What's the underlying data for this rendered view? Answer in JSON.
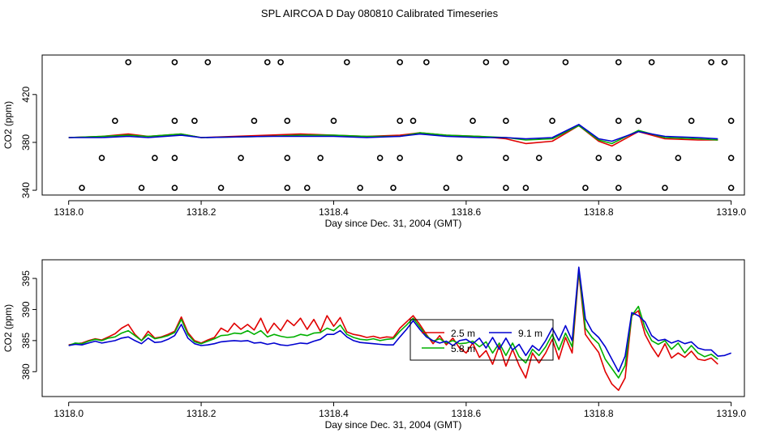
{
  "title": "SPL AIRCOA D  Day 080810  Calibrated Timeseries",
  "colors": {
    "red": "#e00000",
    "green": "#00b000",
    "blue": "#0000d0",
    "axis": "#000000"
  },
  "chart_data": [
    {
      "type": "scatter+line",
      "xlabel": "Day since Dec. 31, 2004 (GMT)",
      "ylabel": "CO2 (ppm)",
      "xlim": [
        1317.96,
        1319.02
      ],
      "ylim": [
        336,
        453
      ],
      "xticks": [
        1318.0,
        1318.2,
        1318.4,
        1318.6,
        1318.8,
        1319.0
      ],
      "xtick_labels": [
        "1318.0",
        "1318.2",
        "1318.4",
        "1318.6",
        "1318.8",
        "1319.0"
      ],
      "yticks": [
        340,
        380,
        420
      ],
      "ytick_labels": [
        "340",
        "380",
        "420"
      ],
      "calibration_points": {
        "marker": "open-circle",
        "levels": [
          {
            "y": 447,
            "x": [
              1318.09,
              1318.16,
              1318.21,
              1318.3,
              1318.32,
              1318.42,
              1318.5,
              1318.54,
              1318.63,
              1318.66,
              1318.75,
              1318.83,
              1318.88,
              1318.97,
              1318.99
            ]
          },
          {
            "y": 398,
            "x": [
              1318.07,
              1318.16,
              1318.19,
              1318.28,
              1318.33,
              1318.4,
              1318.5,
              1318.52,
              1318.61,
              1318.66,
              1318.73,
              1318.83,
              1318.86,
              1318.94,
              1319.0
            ]
          },
          {
            "y": 367,
            "x": [
              1318.05,
              1318.13,
              1318.16,
              1318.26,
              1318.33,
              1318.38,
              1318.47,
              1318.5,
              1318.59,
              1318.66,
              1318.71,
              1318.8,
              1318.83,
              1318.92,
              1319.0
            ]
          },
          {
            "y": 342,
            "x": [
              1318.02,
              1318.11,
              1318.16,
              1318.23,
              1318.33,
              1318.36,
              1318.44,
              1318.49,
              1318.57,
              1318.66,
              1318.69,
              1318.78,
              1318.83,
              1318.9,
              1319.0
            ]
          }
        ]
      },
      "series": [
        {
          "name": "2.5 m",
          "color": "#e00000",
          "x": [
            1318.0,
            1318.05,
            1318.09,
            1318.12,
            1318.17,
            1318.2,
            1318.3,
            1318.35,
            1318.4,
            1318.45,
            1318.5,
            1318.53,
            1318.57,
            1318.62,
            1318.66,
            1318.69,
            1318.73,
            1318.77,
            1318.8,
            1318.82,
            1318.86,
            1318.9,
            1318.95,
            1318.98
          ],
          "values": [
            384,
            385,
            387,
            385,
            387,
            384,
            386,
            387,
            386,
            385,
            386,
            388,
            386,
            385,
            383,
            379,
            381,
            394,
            381,
            377,
            389,
            383,
            382,
            382
          ]
        },
        {
          "name": "5.8 m",
          "color": "#00b000",
          "x": [
            1318.0,
            1318.05,
            1318.09,
            1318.12,
            1318.17,
            1318.2,
            1318.3,
            1318.35,
            1318.4,
            1318.45,
            1318.5,
            1318.53,
            1318.57,
            1318.62,
            1318.66,
            1318.69,
            1318.73,
            1318.77,
            1318.8,
            1318.82,
            1318.86,
            1318.9,
            1318.95,
            1318.98
          ],
          "values": [
            384,
            385,
            386,
            385,
            387,
            384,
            385,
            386,
            386,
            385,
            385,
            388,
            386,
            385,
            384,
            382,
            383,
            394,
            382,
            379,
            390,
            384,
            383,
            382
          ]
        },
        {
          "name": "9.1 m",
          "color": "#0000d0",
          "x": [
            1318.0,
            1318.05,
            1318.09,
            1318.12,
            1318.17,
            1318.2,
            1318.3,
            1318.35,
            1318.4,
            1318.45,
            1318.5,
            1318.53,
            1318.57,
            1318.62,
            1318.66,
            1318.69,
            1318.73,
            1318.77,
            1318.8,
            1318.82,
            1318.86,
            1318.9,
            1318.95,
            1318.98
          ],
          "values": [
            384,
            384,
            385,
            384,
            386,
            384,
            385,
            385,
            385,
            384,
            385,
            387,
            385,
            384,
            384,
            383,
            384,
            395,
            383,
            381,
            389,
            385,
            384,
            383
          ]
        }
      ]
    },
    {
      "type": "line",
      "xlabel": "Day since Dec. 31, 2004 (GMT)",
      "ylabel": "CO2 (ppm)",
      "xlim": [
        1317.96,
        1319.02
      ],
      "ylim": [
        376,
        398
      ],
      "xticks": [
        1318.0,
        1318.2,
        1318.4,
        1318.6,
        1318.8,
        1319.0
      ],
      "xtick_labels": [
        "1318.0",
        "1318.2",
        "1318.4",
        "1318.6",
        "1318.8",
        "1319.0"
      ],
      "yticks": [
        380,
        385,
        390,
        395
      ],
      "ytick_labels": [
        "380",
        "385",
        "390",
        "395"
      ],
      "legend": {
        "position": "center-right",
        "entries": [
          {
            "label": "2.5 m",
            "color": "#e00000"
          },
          {
            "label": "9.1 m",
            "color": "#0000d0"
          },
          {
            "label": "5.8 m",
            "color": "#00b000"
          }
        ]
      },
      "series": [
        {
          "name": "2.5 m",
          "color": "#e00000",
          "x": [
            1318.0,
            1318.01,
            1318.02,
            1318.03,
            1318.04,
            1318.05,
            1318.06,
            1318.07,
            1318.08,
            1318.09,
            1318.1,
            1318.11,
            1318.12,
            1318.13,
            1318.14,
            1318.15,
            1318.16,
            1318.17,
            1318.18,
            1318.19,
            1318.2,
            1318.21,
            1318.22,
            1318.23,
            1318.24,
            1318.25,
            1318.26,
            1318.27,
            1318.28,
            1318.29,
            1318.3,
            1318.31,
            1318.32,
            1318.33,
            1318.34,
            1318.35,
            1318.36,
            1318.37,
            1318.38,
            1318.39,
            1318.4,
            1318.41,
            1318.42,
            1318.43,
            1318.44,
            1318.45,
            1318.46,
            1318.47,
            1318.48,
            1318.49,
            1318.5,
            1318.51,
            1318.52,
            1318.53,
            1318.54,
            1318.55,
            1318.56,
            1318.57,
            1318.58,
            1318.59,
            1318.6,
            1318.61,
            1318.62,
            1318.63,
            1318.64,
            1318.65,
            1318.66,
            1318.67,
            1318.68,
            1318.69,
            1318.7,
            1318.71,
            1318.72,
            1318.73,
            1318.74,
            1318.75,
            1318.76,
            1318.77,
            1318.78,
            1318.79,
            1318.8,
            1318.81,
            1318.82,
            1318.83,
            1318.84,
            1318.85,
            1318.86,
            1318.87,
            1318.88,
            1318.89,
            1318.9,
            1318.91,
            1318.92,
            1318.93,
            1318.94,
            1318.95,
            1318.96,
            1318.97,
            1318.98
          ],
          "values": [
            384.3,
            384.5,
            384.6,
            385.0,
            385.3,
            385.1,
            385.6,
            386.1,
            387.0,
            387.6,
            386.0,
            385.0,
            386.5,
            385.4,
            385.6,
            386.0,
            386.5,
            388.8,
            386.3,
            385.0,
            384.6,
            385.1,
            385.5,
            387.0,
            386.4,
            387.8,
            386.8,
            387.6,
            386.7,
            388.6,
            386.2,
            387.8,
            386.6,
            388.3,
            387.4,
            388.6,
            386.8,
            388.4,
            386.5,
            389.0,
            387.3,
            388.7,
            386.4,
            386.0,
            385.8,
            385.5,
            385.7,
            385.4,
            385.6,
            385.5,
            387.0,
            388.0,
            389.0,
            387.6,
            386.0,
            384.5,
            385.8,
            384.3,
            385.4,
            383.8,
            383.0,
            384.6,
            382.3,
            383.4,
            381.2,
            384.2,
            380.9,
            383.6,
            381.0,
            379.0,
            383.0,
            381.4,
            383.0,
            385.2,
            382.0,
            385.5,
            383.0,
            396.0,
            386.0,
            384.5,
            383.1,
            380.0,
            378.0,
            377.0,
            379.0,
            389.0,
            389.8,
            386.0,
            384.0,
            382.4,
            384.5,
            382.2,
            383.0,
            382.3,
            383.3,
            382.0,
            381.8,
            382.2,
            381.2
          ]
        },
        {
          "name": "5.8 m",
          "color": "#00b000",
          "x": [
            1318.0,
            1318.01,
            1318.02,
            1318.03,
            1318.04,
            1318.05,
            1318.06,
            1318.07,
            1318.08,
            1318.09,
            1318.1,
            1318.11,
            1318.12,
            1318.13,
            1318.14,
            1318.15,
            1318.16,
            1318.17,
            1318.18,
            1318.19,
            1318.2,
            1318.21,
            1318.22,
            1318.23,
            1318.24,
            1318.25,
            1318.26,
            1318.27,
            1318.28,
            1318.29,
            1318.3,
            1318.31,
            1318.32,
            1318.33,
            1318.34,
            1318.35,
            1318.36,
            1318.37,
            1318.38,
            1318.39,
            1318.4,
            1318.41,
            1318.42,
            1318.43,
            1318.44,
            1318.45,
            1318.46,
            1318.47,
            1318.48,
            1318.49,
            1318.5,
            1318.51,
            1318.52,
            1318.53,
            1318.54,
            1318.55,
            1318.56,
            1318.57,
            1318.58,
            1318.59,
            1318.6,
            1318.61,
            1318.62,
            1318.63,
            1318.64,
            1318.65,
            1318.66,
            1318.67,
            1318.68,
            1318.69,
            1318.7,
            1318.71,
            1318.72,
            1318.73,
            1318.74,
            1318.75,
            1318.76,
            1318.77,
            1318.78,
            1318.79,
            1318.8,
            1318.81,
            1318.82,
            1318.83,
            1318.84,
            1318.85,
            1318.86,
            1318.87,
            1318.88,
            1318.89,
            1318.9,
            1318.91,
            1318.92,
            1318.93,
            1318.94,
            1318.95,
            1318.96,
            1318.97,
            1318.98
          ],
          "values": [
            384.2,
            384.6,
            384.5,
            384.9,
            385.2,
            385.0,
            385.4,
            385.6,
            386.2,
            386.6,
            385.8,
            385.0,
            386.0,
            385.3,
            385.5,
            385.8,
            386.3,
            388.4,
            386.0,
            384.8,
            384.5,
            384.9,
            385.3,
            385.8,
            385.9,
            386.2,
            386.1,
            386.6,
            386.0,
            386.6,
            385.6,
            386.0,
            385.7,
            385.5,
            385.6,
            386.0,
            385.8,
            386.2,
            386.3,
            387.0,
            386.6,
            387.5,
            386.0,
            385.5,
            385.2,
            385.1,
            385.3,
            385.0,
            385.2,
            385.3,
            386.5,
            387.5,
            388.6,
            387.2,
            385.8,
            384.9,
            385.3,
            384.6,
            385.0,
            384.5,
            384.6,
            384.9,
            384.0,
            384.8,
            383.0,
            384.6,
            382.6,
            384.6,
            382.4,
            381.4,
            383.6,
            382.6,
            384.0,
            386.0,
            383.5,
            386.2,
            384.0,
            396.4,
            387.0,
            385.5,
            384.5,
            382.0,
            380.5,
            379.0,
            381.0,
            389.0,
            390.5,
            387.0,
            385.0,
            384.4,
            385.0,
            383.6,
            384.6,
            383.0,
            384.2,
            383.0,
            382.4,
            382.8,
            382.0
          ]
        },
        {
          "name": "9.1 m",
          "color": "#0000d0",
          "x": [
            1318.0,
            1318.01,
            1318.02,
            1318.03,
            1318.04,
            1318.05,
            1318.06,
            1318.07,
            1318.08,
            1318.09,
            1318.1,
            1318.11,
            1318.12,
            1318.13,
            1318.14,
            1318.15,
            1318.16,
            1318.17,
            1318.18,
            1318.19,
            1318.2,
            1318.21,
            1318.22,
            1318.23,
            1318.24,
            1318.25,
            1318.26,
            1318.27,
            1318.28,
            1318.29,
            1318.3,
            1318.31,
            1318.32,
            1318.33,
            1318.34,
            1318.35,
            1318.36,
            1318.37,
            1318.38,
            1318.39,
            1318.4,
            1318.41,
            1318.42,
            1318.43,
            1318.44,
            1318.45,
            1318.46,
            1318.47,
            1318.48,
            1318.49,
            1318.5,
            1318.51,
            1318.52,
            1318.53,
            1318.54,
            1318.55,
            1318.56,
            1318.57,
            1318.58,
            1318.59,
            1318.6,
            1318.61,
            1318.62,
            1318.63,
            1318.64,
            1318.65,
            1318.66,
            1318.67,
            1318.68,
            1318.69,
            1318.7,
            1318.71,
            1318.72,
            1318.73,
            1318.74,
            1318.75,
            1318.76,
            1318.77,
            1318.78,
            1318.79,
            1318.8,
            1318.81,
            1318.82,
            1318.83,
            1318.84,
            1318.85,
            1318.86,
            1318.87,
            1318.88,
            1318.89,
            1318.9,
            1318.91,
            1318.92,
            1318.93,
            1318.94,
            1318.95,
            1318.96,
            1318.97,
            1318.98,
            1318.99,
            1319.0
          ],
          "values": [
            384.2,
            384.4,
            384.3,
            384.6,
            384.9,
            384.6,
            384.8,
            385.0,
            385.4,
            385.6,
            385.0,
            384.5,
            385.4,
            384.7,
            384.8,
            385.2,
            385.8,
            387.6,
            385.4,
            384.5,
            384.2,
            384.3,
            384.5,
            384.8,
            384.9,
            385.0,
            384.9,
            385.0,
            384.6,
            384.7,
            384.4,
            384.6,
            384.3,
            384.2,
            384.4,
            384.6,
            384.5,
            384.9,
            385.2,
            386.0,
            386.0,
            386.6,
            385.6,
            385.0,
            384.7,
            384.6,
            384.5,
            384.4,
            384.3,
            384.3,
            385.6,
            386.8,
            388.2,
            386.8,
            385.6,
            385.0,
            384.6,
            384.9,
            384.2,
            385.0,
            385.2,
            384.5,
            385.4,
            383.8,
            385.5,
            383.6,
            385.4,
            383.5,
            384.4,
            382.6,
            384.2,
            383.4,
            385.0,
            387.0,
            385.0,
            387.4,
            385.0,
            396.8,
            388.5,
            386.5,
            385.5,
            384.0,
            382.0,
            380.0,
            382.5,
            389.5,
            389.0,
            388.0,
            385.8,
            385.0,
            385.2,
            384.6,
            385.0,
            384.5,
            384.8,
            383.8,
            383.5,
            383.5,
            382.5,
            382.6,
            383.0
          ]
        }
      ]
    }
  ]
}
